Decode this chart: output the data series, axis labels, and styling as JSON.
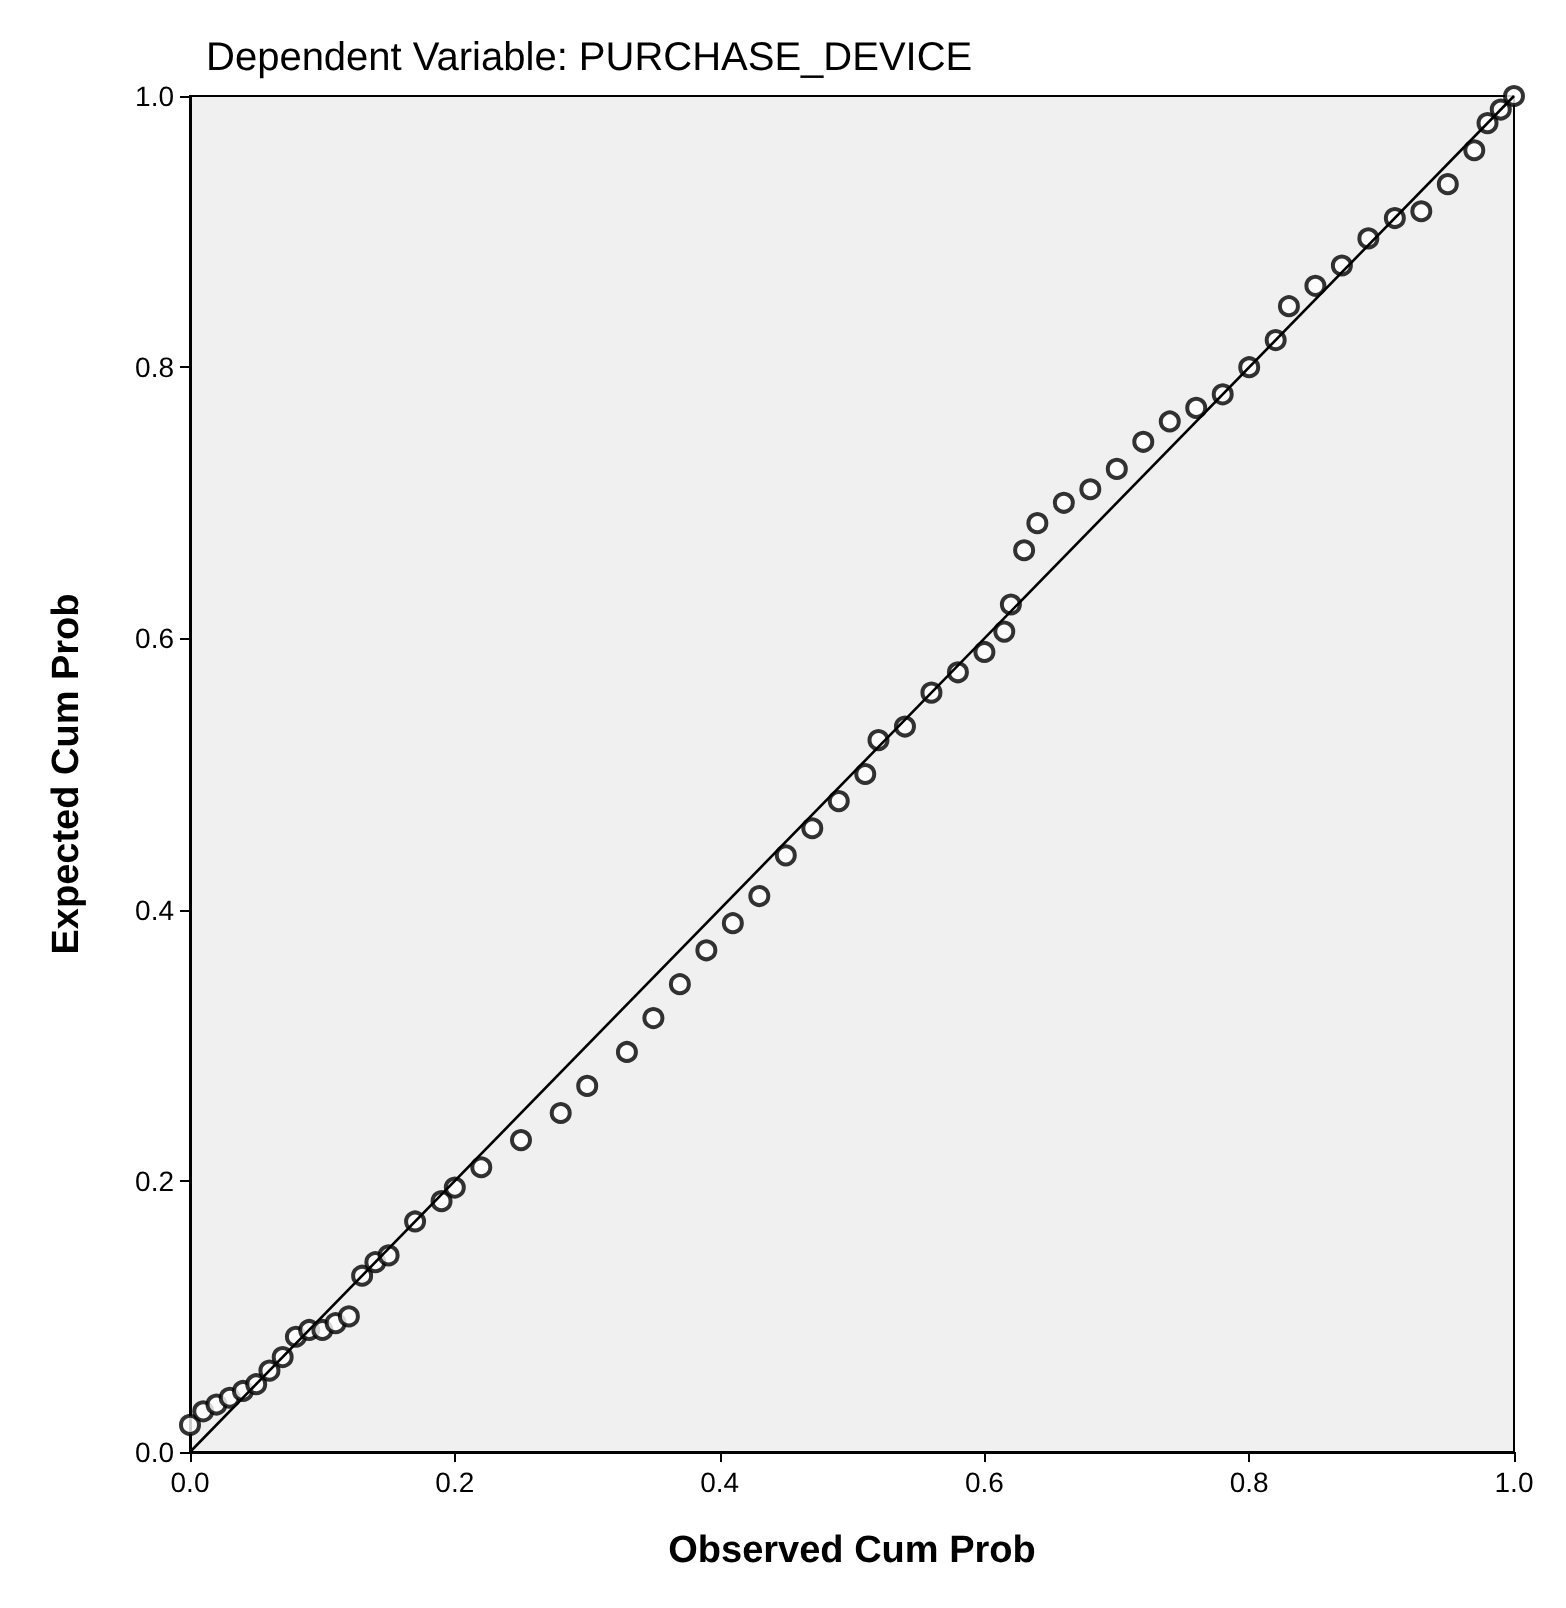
{
  "chart_data": {
    "type": "scatter",
    "title": "Dependent Variable: PURCHASE_DEVICE",
    "xlabel": "Observed Cum Prob",
    "ylabel": "Expected Cum Prob",
    "xlim": [
      0,
      1
    ],
    "ylim": [
      0,
      1
    ],
    "xticks": [
      {
        "value": 0,
        "label": "0.0"
      },
      0.2,
      0.4,
      0.6,
      0.8,
      {
        "value": 1,
        "label": "1.0"
      }
    ],
    "yticks": [
      {
        "value": 0,
        "label": "0.0"
      },
      0.2,
      0.4,
      0.6,
      0.8,
      {
        "value": 1,
        "label": "1.0"
      }
    ],
    "grid": false,
    "marker": "circle",
    "series": [
      {
        "color": "#000000",
        "x": [
          0.0,
          0.01,
          0.02,
          0.03,
          0.04,
          0.05,
          0.06,
          0.07,
          0.08,
          0.09,
          0.1,
          0.11,
          0.12,
          0.13,
          0.14,
          0.15,
          0.17,
          0.19,
          0.2,
          0.22,
          0.25,
          0.28,
          0.3,
          0.33,
          0.35,
          0.37,
          0.39,
          0.41,
          0.43,
          0.45,
          0.47,
          0.49,
          0.51,
          0.52,
          0.54,
          0.56,
          0.58,
          0.6,
          0.615,
          0.62,
          0.63,
          0.64,
          0.66,
          0.68,
          0.7,
          0.72,
          0.74,
          0.76,
          0.78,
          0.8,
          0.82,
          0.83,
          0.85,
          0.87,
          0.89,
          0.91,
          0.93,
          0.95,
          0.97,
          0.98,
          0.99,
          1.0
        ],
        "values": [
          0.02,
          0.03,
          0.035,
          0.04,
          0.045,
          0.05,
          0.06,
          0.07,
          0.085,
          0.09,
          0.09,
          0.095,
          0.1,
          0.13,
          0.14,
          0.145,
          0.17,
          0.185,
          0.195,
          0.21,
          0.23,
          0.25,
          0.27,
          0.295,
          0.32,
          0.345,
          0.37,
          0.39,
          0.41,
          0.44,
          0.46,
          0.48,
          0.5,
          0.525,
          0.535,
          0.56,
          0.575,
          0.59,
          0.605,
          0.625,
          0.665,
          0.685,
          0.7,
          0.71,
          0.725,
          0.745,
          0.76,
          0.77,
          0.78,
          0.8,
          0.82,
          0.845,
          0.86,
          0.875,
          0.895,
          0.91,
          0.915,
          0.935,
          0.96,
          0.98,
          0.99,
          1.0
        ]
      },
      {
        "type": "line",
        "color": "#000000",
        "marker": "none",
        "x": [
          0,
          1
        ],
        "values": [
          0,
          1
        ]
      }
    ]
  }
}
